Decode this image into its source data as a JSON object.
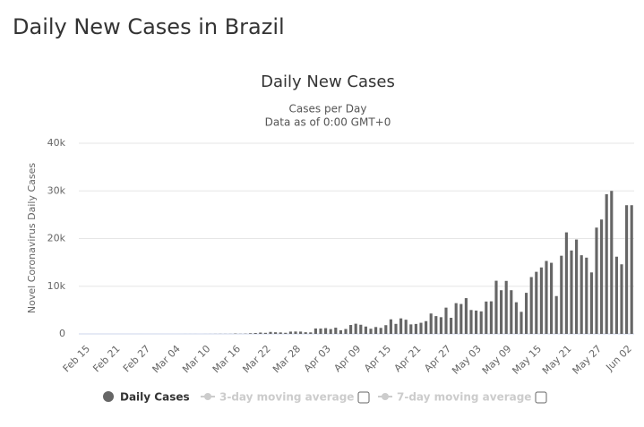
{
  "heading": "Daily New Cases in Brazil",
  "chart_data": {
    "type": "bar",
    "title": "Daily New Cases",
    "subtitle": [
      "Cases per Day",
      "Data as of 0:00 GMT+0"
    ],
    "ylabel": "Novel Coronavirus Daily Cases",
    "categories": [
      "Feb 15",
      null,
      null,
      null,
      null,
      null,
      "Feb 21",
      null,
      null,
      null,
      null,
      null,
      "Feb 27",
      null,
      null,
      null,
      null,
      null,
      "Mar 04",
      null,
      null,
      null,
      null,
      null,
      "Mar 10",
      null,
      null,
      null,
      null,
      null,
      "Mar 16",
      null,
      null,
      null,
      null,
      null,
      "Mar 22",
      null,
      null,
      null,
      null,
      null,
      "Mar 28",
      null,
      null,
      null,
      null,
      null,
      "Apr 03",
      null,
      null,
      null,
      null,
      null,
      "Apr 09",
      null,
      null,
      null,
      null,
      null,
      "Apr 15",
      null,
      null,
      null,
      null,
      null,
      "Apr 21",
      null,
      null,
      null,
      null,
      null,
      "Apr 27",
      null,
      null,
      null,
      null,
      null,
      "May 03",
      null,
      null,
      null,
      null,
      null,
      "May 09",
      null,
      null,
      null,
      null,
      null,
      "May 15",
      null,
      null,
      null,
      null,
      null,
      "May 21",
      null,
      null,
      null,
      null,
      null,
      "May 27",
      null,
      null,
      null,
      null,
      null,
      "Jun 02",
      null
    ],
    "series": [
      {
        "name": "Daily Cases",
        "color": "#666666",
        "values": [
          0,
          0,
          0,
          0,
          0,
          0,
          0,
          0,
          0,
          0,
          0,
          1,
          0,
          0,
          1,
          0,
          0,
          0,
          0,
          1,
          5,
          5,
          6,
          0,
          6,
          9,
          18,
          25,
          21,
          23,
          79,
          34,
          57,
          137,
          193,
          283,
          224,
          418,
          345,
          310,
          232,
          482,
          502,
          487,
          352,
          323,
          1138,
          1119,
          1208,
          1012,
          1304,
          770,
          1031,
          1873,
          2136,
          1922,
          1546,
          1089,
          1442,
          1261,
          1832,
          3058,
          2105,
          3257,
          2976,
          1996,
          2089,
          2336,
          2678,
          4279,
          3735,
          3503,
          5514,
          3379,
          6450,
          6276,
          7502,
          5015,
          4898,
          4726,
          6794,
          6835,
          11156,
          9162,
          11121,
          9167,
          6638,
          4632,
          8620,
          11923,
          13028,
          13944,
          15305,
          14919,
          7938,
          16400,
          21300,
          17500,
          19800,
          16500,
          16000,
          12900,
          22300,
          24000,
          29300,
          30000,
          16200,
          14600,
          27000,
          27000
        ]
      }
    ],
    "inactive_legend": [
      "3-day moving average",
      "7-day moving average"
    ],
    "ylim": [
      0,
      40000
    ],
    "yticks": [
      {
        "value": 0,
        "label": "0"
      },
      {
        "value": 10000,
        "label": "10k"
      },
      {
        "value": 20000,
        "label": "20k"
      },
      {
        "value": 30000,
        "label": "30k"
      },
      {
        "value": 40000,
        "label": "40k"
      }
    ],
    "grid": true
  }
}
